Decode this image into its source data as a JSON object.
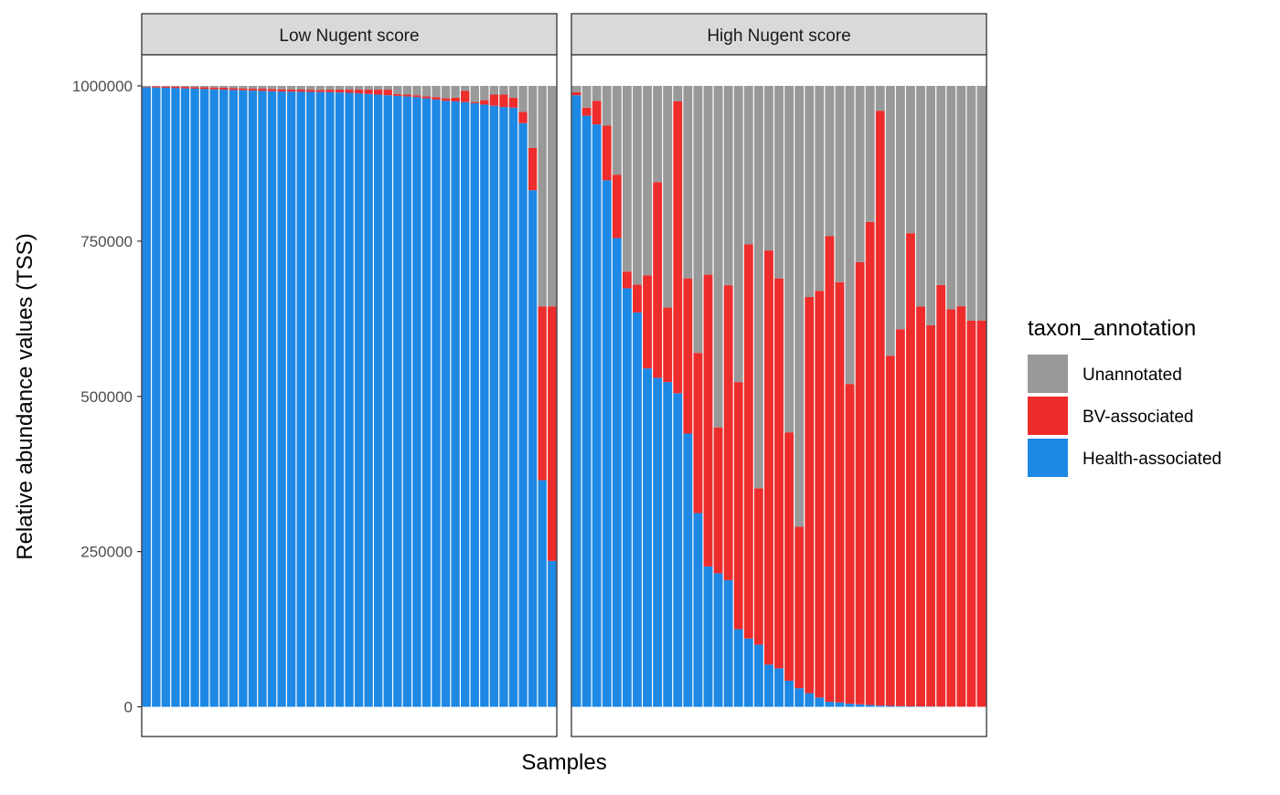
{
  "chart_data": {
    "type": "bar",
    "stacked": true,
    "xlabel": "Samples",
    "ylabel": "Relative abundance values (TSS)",
    "ylim": [
      -50000,
      1100000
    ],
    "yticks": [
      0,
      250000,
      500000,
      750000,
      1000000
    ],
    "ytick_labels": [
      "0",
      "250000",
      "500000",
      "750000",
      "1000000"
    ],
    "legend": {
      "title": "taxon_annotation",
      "position": "right",
      "entries": [
        {
          "name": "Unannotated",
          "color": "#999999"
        },
        {
          "name": "BV-associated",
          "color": "#EE2C2C"
        },
        {
          "name": "Health-associated",
          "color": "#1E88E5"
        }
      ]
    },
    "facets": [
      {
        "label": "Low Nugent score",
        "health": [
          998000,
          997500,
          997000,
          996500,
          996000,
          995500,
          995000,
          994500,
          994000,
          993500,
          993000,
          992500,
          992000,
          991500,
          991000,
          990800,
          990600,
          990400,
          990200,
          990000,
          989500,
          989000,
          988000,
          987000,
          986000,
          985000,
          984000,
          983000,
          982000,
          980000,
          978000,
          976000,
          975000,
          974000,
          972000,
          970000,
          968000,
          966000,
          965000,
          940000,
          832000,
          365000,
          235000
        ],
        "bv": [
          1000,
          2000,
          2000,
          2500,
          2500,
          2500,
          3000,
          3000,
          3000,
          3000,
          3000,
          3000,
          3500,
          3500,
          3500,
          3500,
          3500,
          3500,
          3500,
          4000,
          4500,
          5000,
          6000,
          7000,
          8000,
          9000,
          3000,
          3000,
          3000,
          3000,
          4000,
          4000,
          6000,
          18000,
          2000,
          7000,
          18000,
          20000,
          16000,
          18000,
          68000,
          280000,
          410000
        ],
        "unannotated": [
          1000,
          500,
          1000,
          1000,
          1500,
          2000,
          2000,
          2500,
          3000,
          3500,
          4000,
          4500,
          4500,
          5000,
          5500,
          5700,
          5900,
          6100,
          6300,
          6000,
          6000,
          6000,
          6000,
          6000,
          6000,
          6000,
          13000,
          14000,
          15000,
          17000,
          18000,
          20000,
          19000,
          8000,
          26000,
          23000,
          14000,
          14000,
          19000,
          42000,
          100000,
          355000,
          355000
        ]
      },
      {
        "label": "High Nugent score",
        "health": [
          985000,
          952000,
          938000,
          848000,
          755000,
          674000,
          635000,
          545000,
          530000,
          523000,
          505000,
          440000,
          312000,
          226000,
          215000,
          204000,
          125000,
          110000,
          100000,
          68000,
          62000,
          42000,
          30000,
          22000,
          15000,
          8000,
          7000,
          5000,
          4000,
          3000,
          2000,
          1500,
          1000,
          800,
          600,
          500,
          400,
          300,
          200,
          100,
          50
        ],
        "bv": [
          5000,
          13000,
          38000,
          88000,
          102000,
          27000,
          45000,
          150000,
          315000,
          120000,
          470000,
          250000,
          258000,
          470000,
          235000,
          475000,
          398000,
          635000,
          252000,
          667000,
          628000,
          400000,
          260000,
          638000,
          655000,
          750000,
          677000,
          515000,
          712000,
          778000,
          958000,
          564000,
          607000,
          762000,
          644000,
          614000,
          679000,
          640000,
          645000,
          622000,
          622000
        ],
        "unannotated": [
          10000,
          35000,
          24000,
          64000,
          143000,
          299000,
          320000,
          305000,
          155000,
          357000,
          25000,
          310000,
          430000,
          304000,
          550000,
          321000,
          477000,
          255000,
          648000,
          265000,
          310000,
          558000,
          710000,
          340000,
          330000,
          242000,
          316000,
          480000,
          284000,
          219000,
          40000,
          434500,
          392000,
          237200,
          355400,
          385500,
          320600,
          359700,
          354800,
          377900,
          377950
        ]
      }
    ]
  }
}
